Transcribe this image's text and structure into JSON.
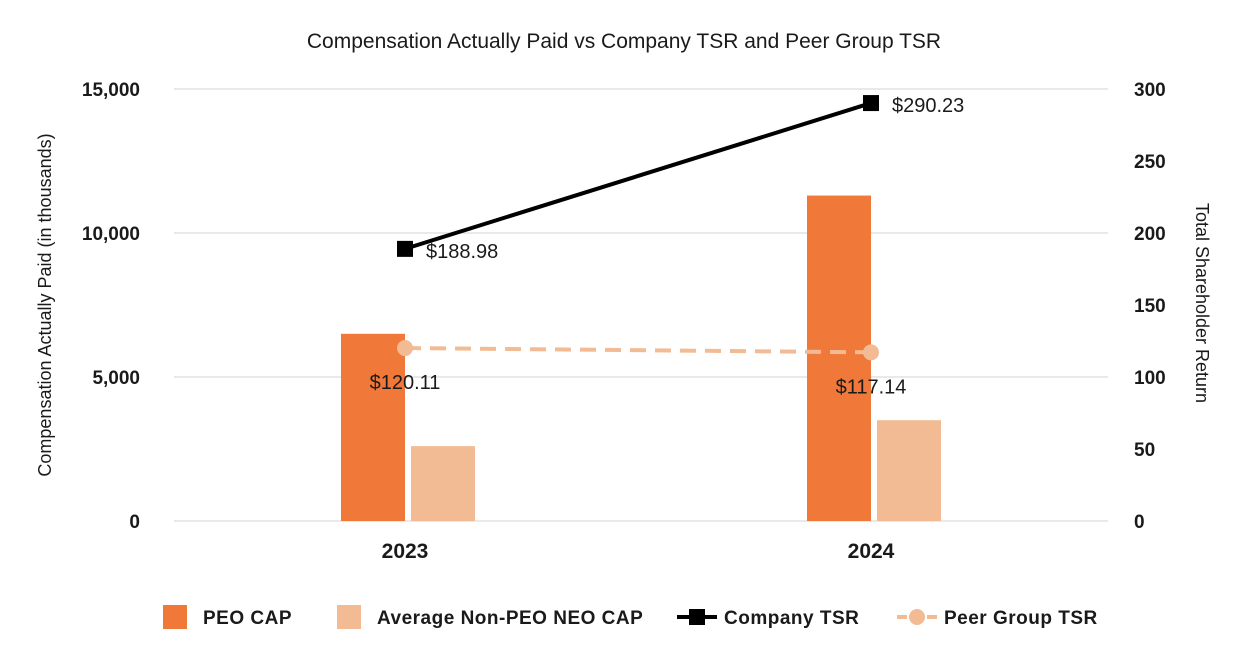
{
  "chart_data": {
    "type": "bar",
    "title": "Compensation Actually Paid vs Company TSR and Peer Group TSR",
    "categories": [
      "2023",
      "2024"
    ],
    "ylabel": "Compensation Actually Paid (in thousands)",
    "y2label": "Total Shareholder Return",
    "ylim": [
      0,
      15000
    ],
    "y2lim": [
      0,
      300
    ],
    "yticks": [
      "0",
      "5,000",
      "10,000",
      "15,000"
    ],
    "y2ticks": [
      "0",
      "50",
      "100",
      "150",
      "200",
      "250",
      "300"
    ],
    "series": [
      {
        "name": "PEO CAP",
        "kind": "bar",
        "axis": "left",
        "values": [
          6500,
          11300
        ],
        "color": "#f07838"
      },
      {
        "name": "Average Non-PEO NEO CAP",
        "kind": "bar",
        "axis": "left",
        "values": [
          2600,
          3500
        ],
        "color": "#f2bb94"
      },
      {
        "name": "Company TSR",
        "kind": "line",
        "axis": "right",
        "values": [
          188.98,
          290.23
        ],
        "labels": [
          "$188.98",
          "$290.23"
        ],
        "color": "#000000"
      },
      {
        "name": "Peer Group TSR",
        "kind": "line",
        "axis": "right",
        "values": [
          120.11,
          117.14
        ],
        "labels": [
          "$120.11",
          "$117.14"
        ],
        "color": "#f2bb94"
      }
    ],
    "grid": true,
    "legend": "bottom"
  }
}
